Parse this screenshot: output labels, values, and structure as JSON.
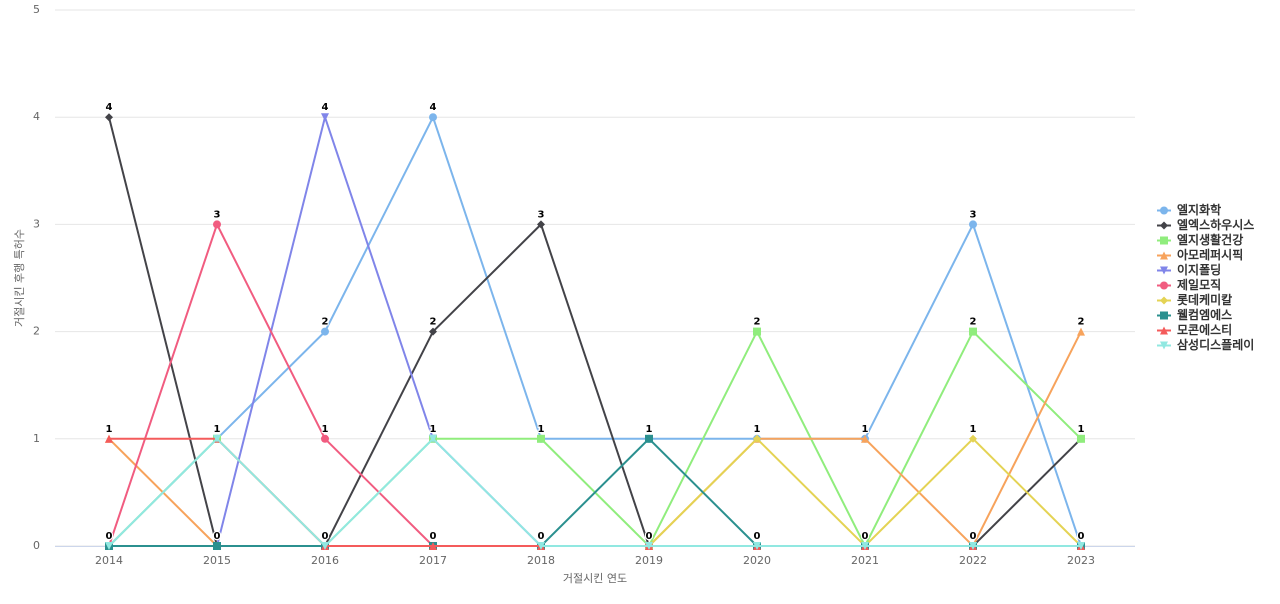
{
  "chart_data": {
    "type": "line",
    "x_label": "거절시킨 연도",
    "y_label": "거절시킨 후행 특허수",
    "categories": [
      "2014",
      "2015",
      "2016",
      "2017",
      "2018",
      "2019",
      "2020",
      "2021",
      "2022",
      "2023"
    ],
    "ylim": [
      0,
      5
    ],
    "yticks": [
      0,
      1,
      2,
      3,
      4,
      5
    ],
    "grid": true,
    "legend": "right",
    "series": [
      {
        "name": "엘지화학",
        "color": "#7cb5ec",
        "marker": "circle",
        "values": [
          0,
          1,
          2,
          4,
          1,
          1,
          1,
          1,
          3,
          0
        ]
      },
      {
        "name": "엘엑스하우시스",
        "color": "#434348",
        "marker": "diamond",
        "values": [
          4,
          0,
          0,
          2,
          3,
          0,
          0,
          0,
          0,
          1
        ]
      },
      {
        "name": "엘지생활건강",
        "color": "#90ed7d",
        "marker": "square",
        "values": [
          0,
          1,
          0,
          1,
          1,
          0,
          2,
          0,
          2,
          1
        ]
      },
      {
        "name": "아모레퍼시픽",
        "color": "#f7a35c",
        "marker": "triangle",
        "values": [
          1,
          0,
          0,
          0,
          0,
          0,
          1,
          1,
          0,
          2
        ]
      },
      {
        "name": "이지폴딩",
        "color": "#8085e9",
        "marker": "triangle-down",
        "values": [
          0,
          0,
          4,
          1,
          0,
          0,
          0,
          0,
          0,
          0
        ]
      },
      {
        "name": "제일모직",
        "color": "#f15c80",
        "marker": "circle",
        "values": [
          0,
          3,
          1,
          0,
          0,
          0,
          0,
          0,
          0,
          0
        ]
      },
      {
        "name": "롯데케미칼",
        "color": "#e4d354",
        "marker": "diamond",
        "values": [
          0,
          0,
          0,
          0,
          0,
          0,
          1,
          0,
          1,
          0
        ]
      },
      {
        "name": "웰컴엠에스",
        "color": "#2b908f",
        "marker": "square",
        "values": [
          0,
          0,
          0,
          0,
          0,
          1,
          0,
          0,
          0,
          0
        ]
      },
      {
        "name": "모콘에스티",
        "color": "#f45b5b",
        "marker": "triangle",
        "values": [
          1,
          1,
          0,
          0,
          0,
          0,
          0,
          0,
          0,
          0
        ]
      },
      {
        "name": "삼성디스플레이",
        "color": "#91e8e1",
        "marker": "triangle-down",
        "values": [
          0,
          1,
          0,
          1,
          0,
          0,
          0,
          0,
          0,
          0
        ]
      }
    ]
  }
}
